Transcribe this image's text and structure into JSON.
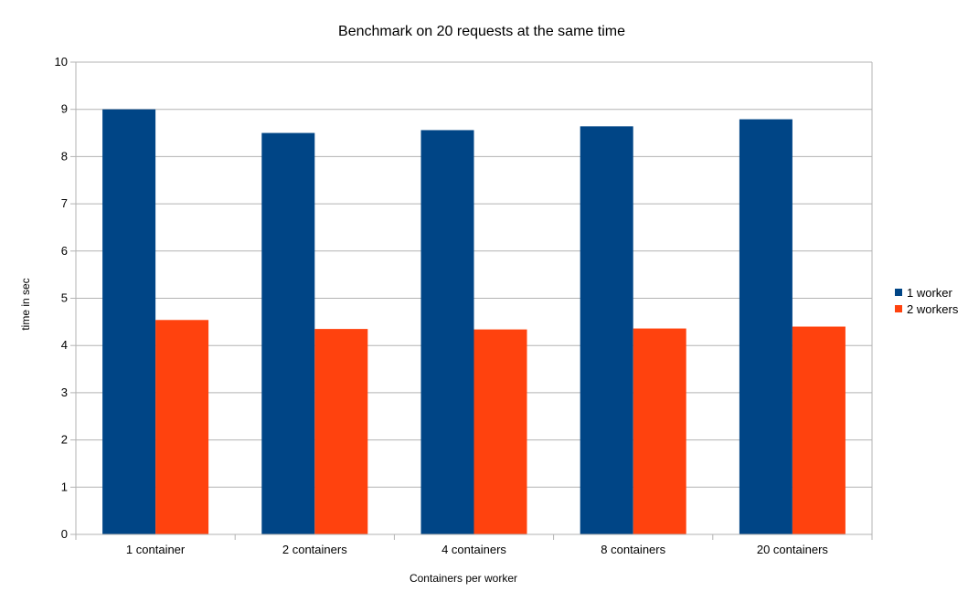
{
  "chart_data": {
    "type": "bar",
    "title": "Benchmark on 20 requests at the same time",
    "xlabel": "Containers per worker",
    "ylabel": "time in sec",
    "categories": [
      "1 container",
      "2 containers",
      "4 containers",
      "8 containers",
      "20 containers"
    ],
    "series": [
      {
        "name": "1 worker",
        "color": "#004586",
        "values": [
          9.0,
          8.5,
          8.56,
          8.64,
          8.79
        ]
      },
      {
        "name": "2 workers",
        "color": "#ff420e",
        "values": [
          4.54,
          4.35,
          4.34,
          4.36,
          4.4
        ]
      }
    ],
    "ylim": [
      0,
      10
    ],
    "yticks": [
      "0",
      "1",
      "2",
      "3",
      "4",
      "5",
      "6",
      "7",
      "8",
      "9",
      "10"
    ],
    "grid": true,
    "legend_position": "right"
  }
}
